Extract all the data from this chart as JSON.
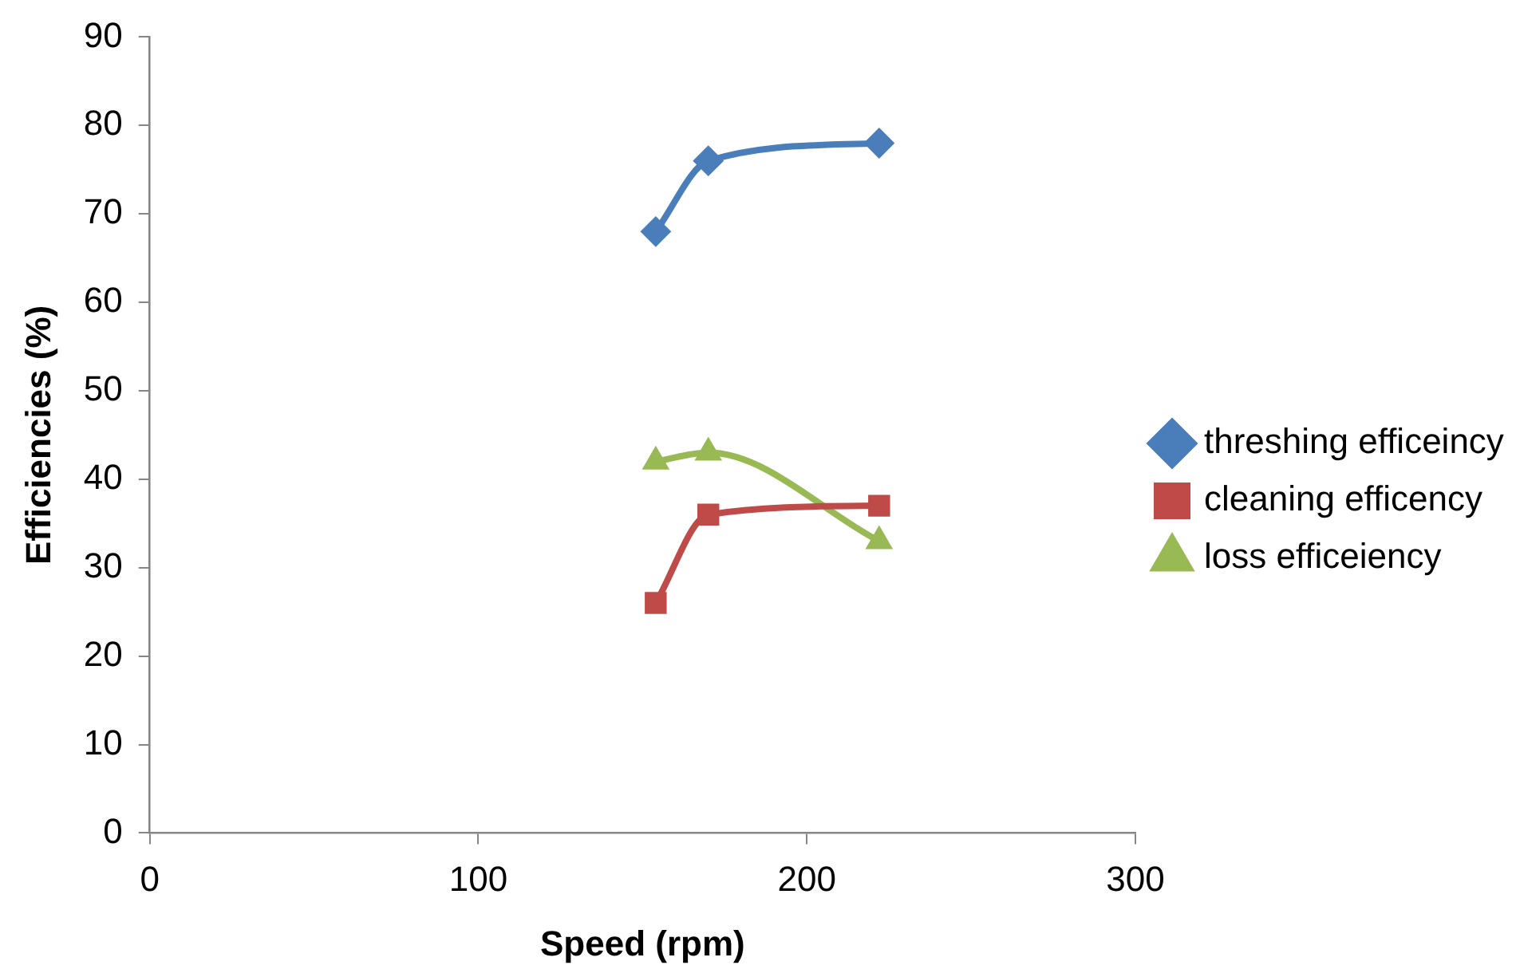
{
  "chart_data": {
    "type": "line",
    "xlabel": "Speed (rpm)",
    "ylabel": "Efficiencies (%)",
    "xlim": [
      0,
      300
    ],
    "xticks": [
      0,
      100,
      200,
      300
    ],
    "ylim": [
      0,
      90
    ],
    "yticks": [
      0,
      10,
      20,
      30,
      40,
      50,
      60,
      70,
      80,
      90
    ],
    "x": [
      154,
      170,
      222
    ],
    "series": [
      {
        "name": "threshing efficeincy",
        "color": "#4a7ebb",
        "marker": "diamond",
        "values": [
          68,
          76,
          78
        ]
      },
      {
        "name": "cleaning efficency",
        "color": "#be4b48",
        "marker": "square",
        "values": [
          26,
          36,
          37
        ]
      },
      {
        "name": "loss efficeiency",
        "color": "#98b954",
        "marker": "triangle",
        "values": [
          42,
          43,
          33
        ]
      }
    ],
    "grid": false,
    "legend": "right",
    "line_style": "solid"
  }
}
